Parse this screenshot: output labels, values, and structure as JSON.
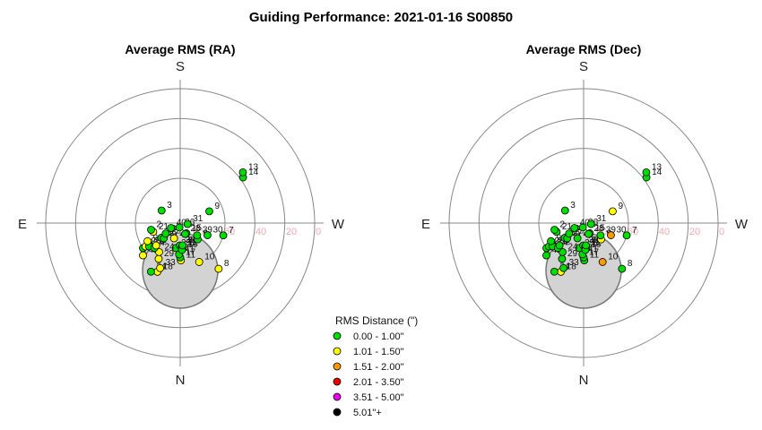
{
  "page_title": "Guiding Performance: 2021-01-16 S00850",
  "chart_data": [
    {
      "type": "scatter",
      "subtitle": "Average RMS (RA)",
      "projection": "polar-sky",
      "directions": {
        "top": "S",
        "bottom": "N",
        "left": "E",
        "right": "W"
      },
      "altitude_ticks": [
        "80",
        "60",
        "40",
        "20",
        "0"
      ],
      "points": [
        {
          "label": "11",
          "az": 181,
          "alt": 65,
          "bin": 1
        },
        {
          "label": "17",
          "az": 180,
          "alt": 67,
          "bin": 0
        },
        {
          "label": "18",
          "az": 155,
          "alt": 54,
          "bin": 1
        },
        {
          "label": "34",
          "az": 149,
          "alt": 52,
          "bin": 0
        },
        {
          "label": "33",
          "az": 156,
          "alt": 57,
          "bin": 1
        },
        {
          "label": "41",
          "az": 178,
          "alt": 69,
          "bin": 0
        },
        {
          "label": "10",
          "az": 206,
          "alt": 61,
          "bin": 1
        },
        {
          "label": "8",
          "az": 220,
          "alt": 50,
          "bin": 1
        },
        {
          "label": "29",
          "az": 149,
          "alt": 62,
          "bin": 1
        },
        {
          "label": "35",
          "az": 170,
          "alt": 73,
          "bin": 0
        },
        {
          "label": "38",
          "az": 179,
          "alt": 75,
          "bin": 0
        },
        {
          "label": "19",
          "az": 184,
          "alt": 74,
          "bin": 0
        },
        {
          "label": "12",
          "az": 186,
          "alt": 73,
          "bin": 1
        },
        {
          "label": "16",
          "az": 184,
          "alt": 72,
          "bin": 0
        },
        {
          "label": "32",
          "az": 186,
          "alt": 75,
          "bin": 0
        },
        {
          "label": "42",
          "az": 131,
          "alt": 57,
          "bin": 1
        },
        {
          "label": "24",
          "az": 144,
          "alt": 66,
          "bin": 1
        },
        {
          "label": "5",
          "az": 227,
          "alt": 74,
          "bin": 0
        },
        {
          "label": "15",
          "az": 211,
          "alt": 82,
          "bin": 0
        },
        {
          "label": "25",
          "az": 124,
          "alt": 60,
          "bin": 0
        },
        {
          "label": "20",
          "az": 124,
          "alt": 62,
          "bin": 1
        },
        {
          "label": "22",
          "az": 127,
          "alt": 64,
          "bin": 0
        },
        {
          "label": "4",
          "az": 134,
          "alt": 66,
          "bin": 0
        },
        {
          "label": "1",
          "az": 133,
          "alt": 68,
          "bin": 1
        },
        {
          "label": "6",
          "az": 119,
          "alt": 65,
          "bin": 1
        },
        {
          "label": "23",
          "az": 158,
          "alt": 79,
          "bin": 1
        },
        {
          "label": "36",
          "az": 128,
          "alt": 74,
          "bin": 0
        },
        {
          "label": "27",
          "az": 133,
          "alt": 75,
          "bin": 0
        },
        {
          "label": "37",
          "az": 126,
          "alt": 78,
          "bin": 0
        },
        {
          "label": "40",
          "az": 118,
          "alt": 83,
          "bin": 0
        },
        {
          "label": "28",
          "az": 204,
          "alt": 82,
          "bin": 0
        },
        {
          "label": "26",
          "az": 170,
          "alt": 87,
          "bin": 0
        },
        {
          "label": "39",
          "az": 234,
          "alt": 76,
          "bin": 0
        },
        {
          "label": "30",
          "az": 246,
          "alt": 70,
          "bin": 0
        },
        {
          "label": "7",
          "az": 254,
          "alt": 60,
          "bin": 0
        },
        {
          "label": "21",
          "az": 108,
          "alt": 71,
          "bin": 1
        },
        {
          "label": "2",
          "az": 103,
          "alt": 70,
          "bin": 0
        },
        {
          "label": "31",
          "az": 262,
          "alt": 85,
          "bin": 0
        },
        {
          "label": "9",
          "az": 292,
          "alt": 69,
          "bin": 0
        },
        {
          "label": "3",
          "az": 56,
          "alt": 75,
          "bin": 0
        },
        {
          "label": "14",
          "az": 306,
          "alt": 38,
          "bin": 0
        },
        {
          "label": "13",
          "az": 309,
          "alt": 36,
          "bin": 0
        }
      ]
    },
    {
      "type": "scatter",
      "subtitle": "Average RMS (Dec)",
      "projection": "polar-sky",
      "directions": {
        "top": "S",
        "bottom": "N",
        "left": "E",
        "right": "W"
      },
      "altitude_ticks": [
        "80",
        "60",
        "40",
        "20",
        "0"
      ],
      "points": [
        {
          "label": "11",
          "az": 181,
          "alt": 65,
          "bin": 0
        },
        {
          "label": "17",
          "az": 180,
          "alt": 67,
          "bin": 0
        },
        {
          "label": "18",
          "az": 155,
          "alt": 54,
          "bin": 1
        },
        {
          "label": "34",
          "az": 149,
          "alt": 52,
          "bin": 0
        },
        {
          "label": "33",
          "az": 156,
          "alt": 57,
          "bin": 0
        },
        {
          "label": "41",
          "az": 178,
          "alt": 69,
          "bin": 0
        },
        {
          "label": "10",
          "az": 206,
          "alt": 61,
          "bin": 2
        },
        {
          "label": "8",
          "az": 220,
          "alt": 50,
          "bin": 0
        },
        {
          "label": "29",
          "az": 149,
          "alt": 62,
          "bin": 0
        },
        {
          "label": "35",
          "az": 170,
          "alt": 73,
          "bin": 0
        },
        {
          "label": "38",
          "az": 179,
          "alt": 75,
          "bin": 0
        },
        {
          "label": "19",
          "az": 184,
          "alt": 74,
          "bin": 0
        },
        {
          "label": "12",
          "az": 186,
          "alt": 73,
          "bin": 0
        },
        {
          "label": "16",
          "az": 184,
          "alt": 72,
          "bin": 0
        },
        {
          "label": "32",
          "az": 186,
          "alt": 75,
          "bin": 0
        },
        {
          "label": "42",
          "az": 131,
          "alt": 57,
          "bin": 0
        },
        {
          "label": "24",
          "az": 144,
          "alt": 66,
          "bin": 0
        },
        {
          "label": "5",
          "az": 227,
          "alt": 74,
          "bin": 1
        },
        {
          "label": "15",
          "az": 211,
          "alt": 82,
          "bin": 0
        },
        {
          "label": "25",
          "az": 124,
          "alt": 60,
          "bin": 0
        },
        {
          "label": "20",
          "az": 124,
          "alt": 62,
          "bin": 0
        },
        {
          "label": "22",
          "az": 127,
          "alt": 64,
          "bin": 0
        },
        {
          "label": "4",
          "az": 134,
          "alt": 66,
          "bin": 0
        },
        {
          "label": "1",
          "az": 133,
          "alt": 68,
          "bin": 0
        },
        {
          "label": "6",
          "az": 119,
          "alt": 65,
          "bin": 0
        },
        {
          "label": "23",
          "az": 158,
          "alt": 79,
          "bin": 0
        },
        {
          "label": "36",
          "az": 128,
          "alt": 74,
          "bin": 0
        },
        {
          "label": "27",
          "az": 133,
          "alt": 75,
          "bin": 0
        },
        {
          "label": "37",
          "az": 126,
          "alt": 78,
          "bin": 0
        },
        {
          "label": "40",
          "az": 118,
          "alt": 83,
          "bin": 0
        },
        {
          "label": "28",
          "az": 204,
          "alt": 82,
          "bin": 0
        },
        {
          "label": "26",
          "az": 170,
          "alt": 87,
          "bin": 0
        },
        {
          "label": "39",
          "az": 234,
          "alt": 76,
          "bin": 0
        },
        {
          "label": "30",
          "az": 246,
          "alt": 70,
          "bin": 2
        },
        {
          "label": "7",
          "az": 254,
          "alt": 60,
          "bin": 0
        },
        {
          "label": "21",
          "az": 108,
          "alt": 71,
          "bin": 0
        },
        {
          "label": "2",
          "az": 103,
          "alt": 70,
          "bin": 0
        },
        {
          "label": "31",
          "az": 262,
          "alt": 85,
          "bin": 0
        },
        {
          "label": "9",
          "az": 292,
          "alt": 69,
          "bin": 1
        },
        {
          "label": "3",
          "az": 56,
          "alt": 75,
          "bin": 0
        },
        {
          "label": "14",
          "az": 306,
          "alt": 38,
          "bin": 0
        },
        {
          "label": "13",
          "az": 309,
          "alt": 36,
          "bin": 0
        }
      ]
    }
  ],
  "legend": {
    "title": "RMS Distance (\")",
    "items": [
      {
        "label": "0.00 - 1.00\"",
        "color": "#00dd00"
      },
      {
        "label": "1.01 - 1.50\"",
        "color": "#ffff00"
      },
      {
        "label": "1.51 - 2.00\"",
        "color": "#ff9900"
      },
      {
        "label": "2.01 - 3.50\"",
        "color": "#ee0000"
      },
      {
        "label": "3.51 - 5.00\"",
        "color": "#ee00ee"
      },
      {
        "label": "5.01\"+",
        "color": "#000000"
      }
    ]
  }
}
